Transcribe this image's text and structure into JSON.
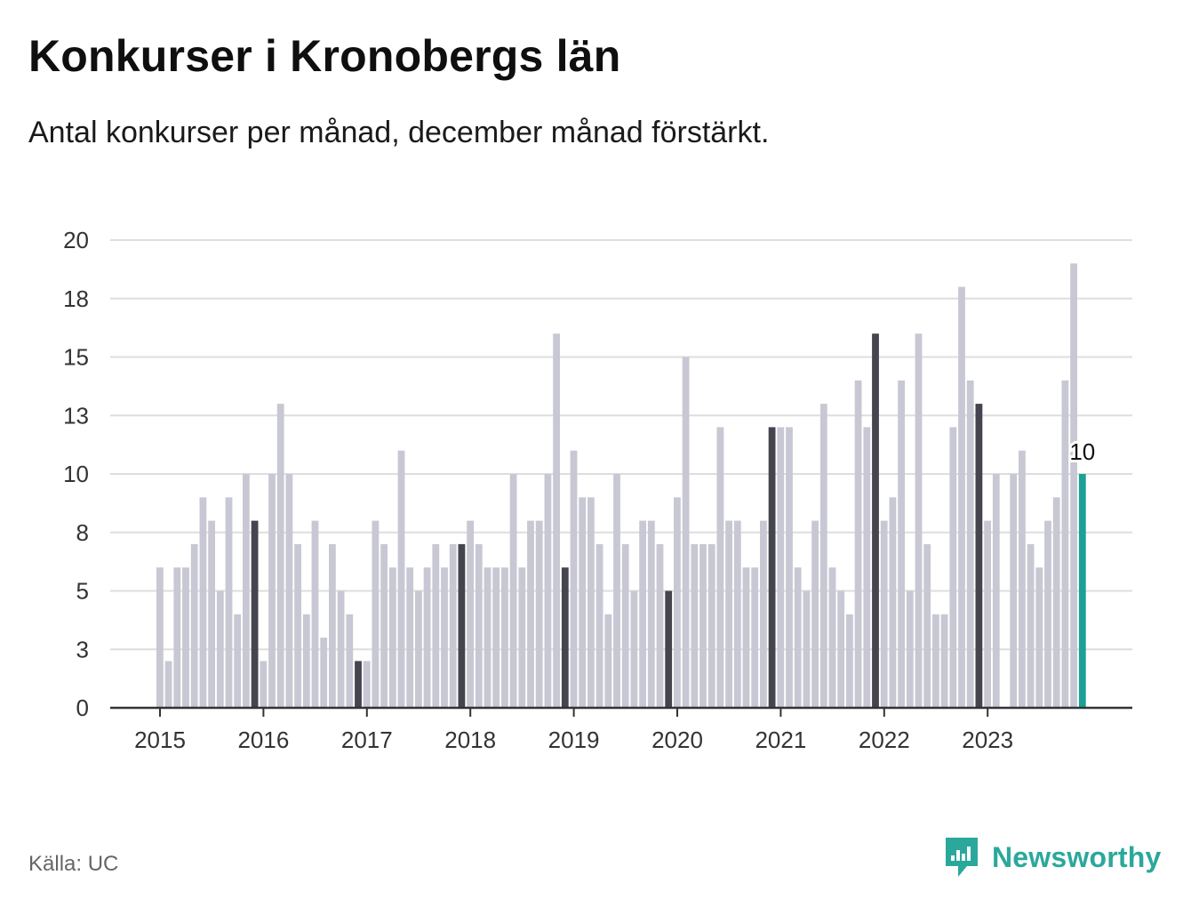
{
  "header": {
    "title": "Konkurser i Kronobergs län",
    "subtitle": "Antal konkurser per månad, december månad förstärkt."
  },
  "footer": {
    "source": "Källa: UC",
    "brand": "Newsworthy"
  },
  "colors": {
    "bar": "#c8c8d4",
    "december": "#45444f",
    "latest": "#1aa095",
    "grid": "#dedede",
    "axis": "#333333"
  },
  "chart_data": {
    "type": "bar",
    "ylim": [
      0,
      20
    ],
    "y_ticks": [
      "0",
      "3",
      "5",
      "8",
      "10",
      "13",
      "15",
      "18",
      "20"
    ],
    "x_tick_labels": [
      "2015",
      "2016",
      "2017",
      "2018",
      "2019",
      "2020",
      "2021",
      "2022",
      "2023"
    ],
    "start": "2015-01",
    "values": [
      6,
      2,
      6,
      6,
      7,
      9,
      8,
      5,
      9,
      4,
      10,
      8,
      2,
      10,
      13,
      10,
      7,
      4,
      8,
      3,
      7,
      5,
      4,
      2,
      2,
      8,
      7,
      6,
      11,
      6,
      5,
      6,
      7,
      6,
      7,
      7,
      8,
      7,
      6,
      6,
      6,
      10,
      6,
      8,
      8,
      10,
      16,
      6,
      11,
      9,
      9,
      7,
      4,
      10,
      7,
      5,
      8,
      8,
      7,
      5,
      9,
      15,
      7,
      7,
      7,
      12,
      8,
      8,
      6,
      6,
      8,
      12,
      12,
      12,
      6,
      5,
      8,
      13,
      6,
      5,
      4,
      14,
      12,
      16,
      8,
      9,
      14,
      5,
      16,
      7,
      4,
      4,
      12,
      18,
      14,
      13,
      8,
      10,
      0,
      10,
      11,
      7,
      6,
      8,
      9,
      14,
      19,
      10
    ],
    "latest_label": "10"
  }
}
